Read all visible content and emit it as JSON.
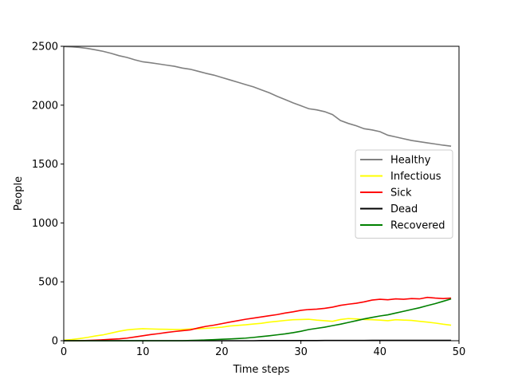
{
  "chart_data": {
    "type": "line",
    "xlabel": "Time steps",
    "ylabel": "People",
    "xlim": [
      0,
      50
    ],
    "ylim": [
      0,
      2500
    ],
    "xticks": [
      "0",
      "10",
      "20",
      "30",
      "40",
      "50"
    ],
    "yticks": [
      "0",
      "500",
      "1000",
      "1500",
      "2000",
      "2500"
    ],
    "grid": false,
    "legend_position": "center-right",
    "x": [
      0,
      1,
      2,
      3,
      4,
      5,
      6,
      7,
      8,
      9,
      10,
      11,
      12,
      13,
      14,
      15,
      16,
      17,
      18,
      19,
      20,
      21,
      22,
      23,
      24,
      25,
      26,
      27,
      28,
      29,
      30,
      31,
      32,
      33,
      34,
      35,
      36,
      37,
      38,
      39,
      40,
      41,
      42,
      43,
      44,
      45,
      46,
      47,
      48,
      49
    ],
    "series": [
      {
        "name": "Healthy",
        "color": "#808080",
        "values": [
          2498,
          2495,
          2490,
          2482,
          2470,
          2457,
          2440,
          2420,
          2405,
          2385,
          2368,
          2360,
          2350,
          2340,
          2330,
          2315,
          2305,
          2288,
          2270,
          2255,
          2235,
          2215,
          2195,
          2175,
          2155,
          2130,
          2105,
          2075,
          2048,
          2020,
          1995,
          1970,
          1960,
          1945,
          1920,
          1870,
          1845,
          1825,
          1800,
          1790,
          1775,
          1745,
          1730,
          1715,
          1700,
          1690,
          1680,
          1670,
          1660,
          1652
        ]
      },
      {
        "name": "Infectious",
        "color": "#ffff00",
        "values": [
          5,
          10,
          18,
          28,
          40,
          50,
          65,
          80,
          92,
          98,
          102,
          100,
          98,
          97,
          95,
          95,
          100,
          102,
          105,
          110,
          115,
          125,
          130,
          135,
          142,
          148,
          158,
          165,
          172,
          178,
          180,
          182,
          175,
          170,
          165,
          180,
          188,
          185,
          180,
          178,
          175,
          170,
          178,
          175,
          172,
          165,
          158,
          150,
          140,
          132
        ]
      },
      {
        "name": "Sick",
        "color": "#ff0000",
        "values": [
          0,
          0,
          0,
          2,
          5,
          8,
          12,
          16,
          22,
          32,
          42,
          52,
          60,
          70,
          78,
          85,
          92,
          108,
          122,
          132,
          145,
          158,
          170,
          182,
          192,
          202,
          212,
          222,
          235,
          245,
          258,
          265,
          268,
          275,
          285,
          300,
          310,
          318,
          330,
          345,
          352,
          348,
          355,
          352,
          358,
          355,
          368,
          362,
          358,
          362
        ]
      },
      {
        "name": "Dead",
        "color": "#000000",
        "values": [
          0,
          0,
          0,
          0,
          0,
          0,
          0,
          0,
          0,
          0,
          0,
          0,
          0,
          0,
          0,
          0,
          0,
          0,
          0,
          0,
          0,
          0,
          0,
          0,
          0,
          1,
          1,
          1,
          1,
          1,
          1,
          1,
          1,
          2,
          2,
          2,
          2,
          2,
          2,
          3,
          3,
          3,
          3,
          3,
          3,
          3,
          3,
          3,
          3,
          3
        ]
      },
      {
        "name": "Recovered",
        "color": "#008000",
        "values": [
          0,
          0,
          0,
          0,
          0,
          0,
          0,
          0,
          0,
          0,
          0,
          0,
          0,
          0,
          0,
          0,
          2,
          4,
          6,
          9,
          12,
          15,
          18,
          22,
          28,
          35,
          42,
          50,
          58,
          68,
          80,
          95,
          105,
          115,
          128,
          140,
          155,
          170,
          185,
          198,
          210,
          220,
          235,
          250,
          265,
          280,
          298,
          315,
          335,
          355
        ]
      }
    ]
  }
}
